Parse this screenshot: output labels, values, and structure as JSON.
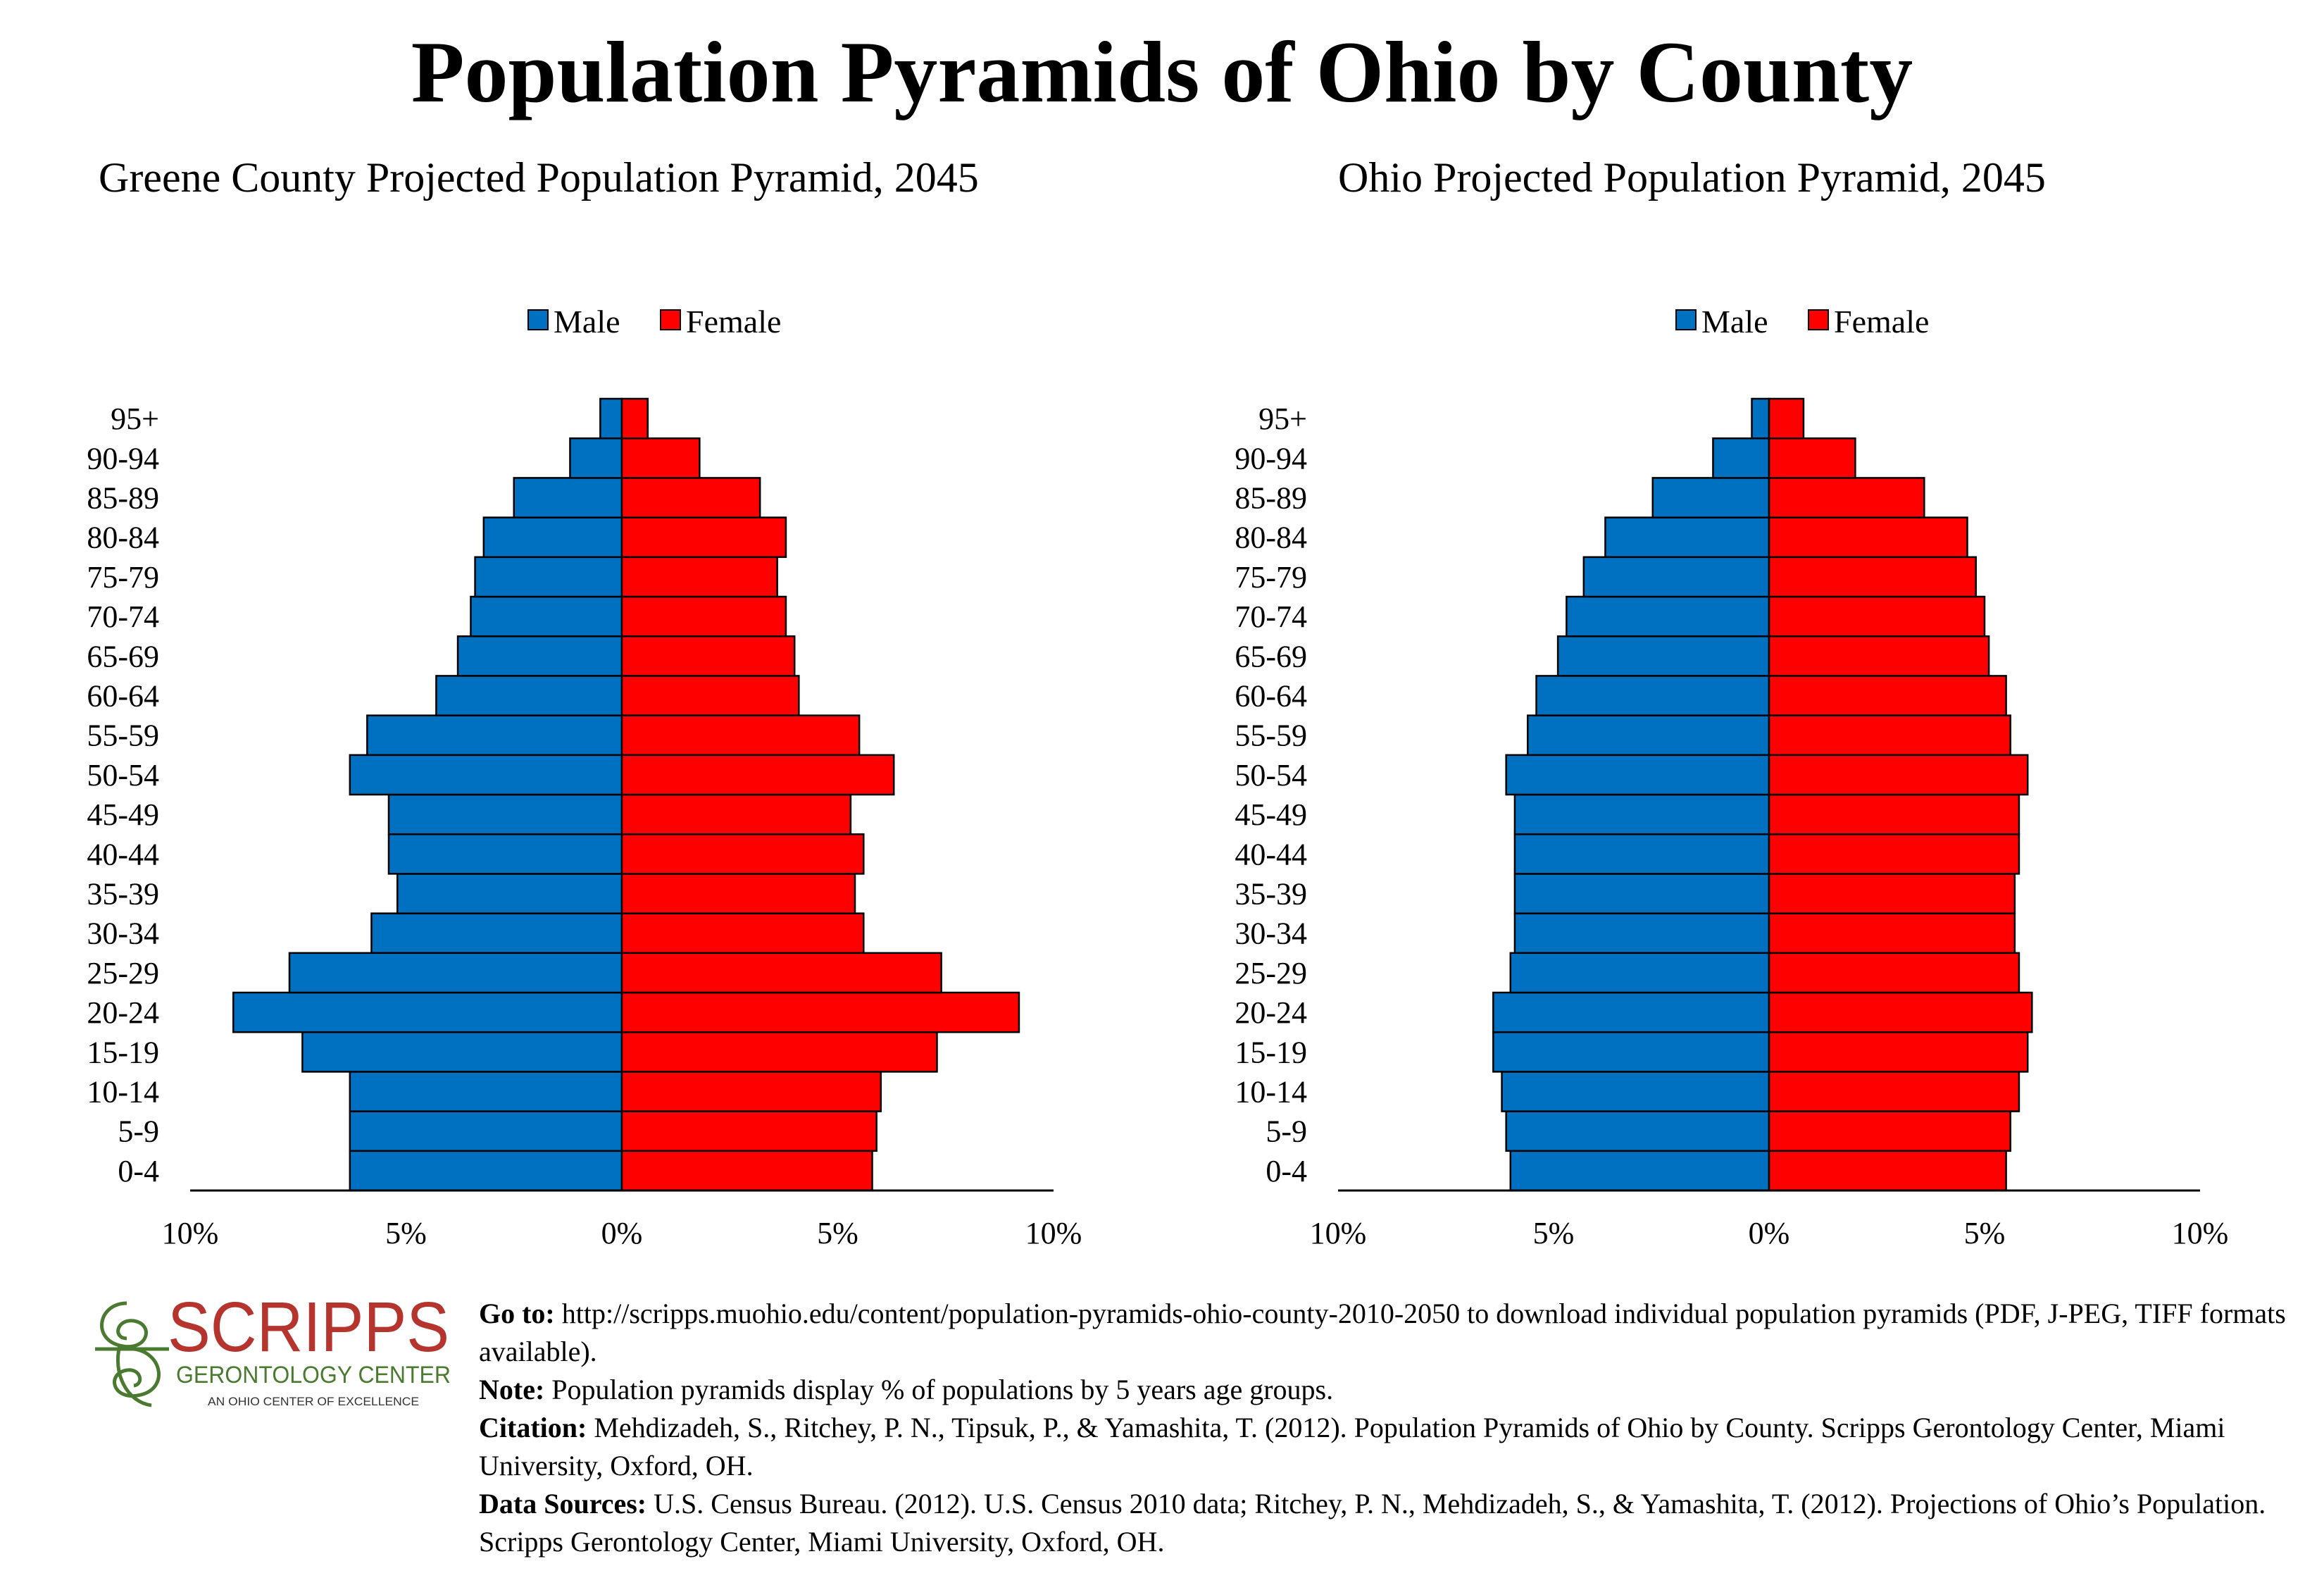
{
  "title": "Population Pyramids of Ohio by County",
  "colors": {
    "male": "#0070C0",
    "female": "#FF0000",
    "logo_red": "#B5352E",
    "logo_green": "#4A7A30"
  },
  "chart_data": [
    {
      "type": "bar",
      "orientation": "horizontal-pyramid",
      "title": "Greene County Projected Population Pyramid, 2045",
      "categories": [
        "0-4",
        "5-9",
        "10-14",
        "15-19",
        "20-24",
        "25-29",
        "30-34",
        "35-39",
        "40-44",
        "45-49",
        "50-54",
        "55-59",
        "60-64",
        "65-69",
        "70-74",
        "75-79",
        "80-84",
        "85-89",
        "90-94",
        "95+"
      ],
      "series": [
        {
          "name": "Male",
          "values": [
            6.3,
            6.3,
            6.3,
            7.4,
            9.0,
            7.7,
            5.8,
            5.2,
            5.4,
            5.4,
            6.3,
            5.9,
            4.3,
            3.8,
            3.5,
            3.4,
            3.2,
            2.5,
            1.2,
            0.5
          ]
        },
        {
          "name": "Female",
          "values": [
            5.8,
            5.9,
            6.0,
            7.3,
            9.2,
            7.4,
            5.6,
            5.4,
            5.6,
            5.3,
            6.3,
            5.5,
            4.1,
            4.0,
            3.8,
            3.6,
            3.8,
            3.2,
            1.8,
            0.6
          ]
        }
      ],
      "xlim": [
        -10,
        10
      ],
      "tick_labels": [
        "10%",
        "5%",
        "0%",
        "5%",
        "10%"
      ],
      "legend": "top-center",
      "grid": false
    },
    {
      "type": "bar",
      "orientation": "horizontal-pyramid",
      "title": "Ohio Projected Population Pyramid, 2045",
      "categories": [
        "0-4",
        "5-9",
        "10-14",
        "15-19",
        "20-24",
        "25-29",
        "30-34",
        "35-39",
        "40-44",
        "45-49",
        "50-54",
        "55-59",
        "60-64",
        "65-69",
        "70-74",
        "75-79",
        "80-84",
        "85-89",
        "90-94",
        "95+"
      ],
      "series": [
        {
          "name": "Male",
          "values": [
            6.0,
            6.1,
            6.2,
            6.4,
            6.4,
            6.0,
            5.9,
            5.9,
            5.9,
            5.9,
            6.1,
            5.6,
            5.4,
            4.9,
            4.7,
            4.3,
            3.8,
            2.7,
            1.3,
            0.4
          ]
        },
        {
          "name": "Female",
          "values": [
            5.5,
            5.6,
            5.8,
            6.0,
            6.1,
            5.8,
            5.7,
            5.7,
            5.8,
            5.8,
            6.0,
            5.6,
            5.5,
            5.1,
            5.0,
            4.8,
            4.6,
            3.6,
            2.0,
            0.8
          ]
        }
      ],
      "xlim": [
        -10,
        10
      ],
      "tick_labels": [
        "10%",
        "5%",
        "0%",
        "5%",
        "10%"
      ],
      "legend": "top-center",
      "grid": false
    }
  ],
  "logo": {
    "name": "SCRIPPS",
    "line1": "GERONTOLOGY CENTER",
    "line2": "AN OHIO CENTER OF EXCELLENCE"
  },
  "footer": {
    "goto_label": "Go to:",
    "goto_text": " http://scripps.muohio.edu/content/population-pyramids-ohio-county-2010-2050 to download individual population pyramids (PDF, J-PEG, TIFF formats available).",
    "note_label": "Note:",
    "note_text": " Population pyramids display % of populations by 5 years age groups.",
    "citation_label": "Citation:",
    "citation_text": " Mehdizadeh, S., Ritchey, P. N., Tipsuk, P., & Yamashita, T. (2012). Population Pyramids of Ohio by County. Scripps Gerontology Center, Miami University, Oxford, OH.",
    "sources_label": "Data Sources:",
    "sources_text": " U.S. Census Bureau. (2012). U.S. Census 2010 data; Ritchey, P. N., Mehdizadeh, S., & Yamashita, T. (2012). Projections of Ohio’s Population. Scripps Gerontology Center, Miami University, Oxford, OH."
  }
}
